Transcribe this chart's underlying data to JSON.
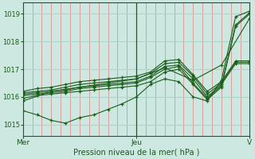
{
  "xlabel": "Pression niveau de la mer( hPa )",
  "bg_color": "#cce8e0",
  "plot_bg_color": "#cce8e0",
  "grid_h_color": "#b0d4cc",
  "grid_v_color": "#e08080",
  "line_color": "#1a5c1a",
  "text_color": "#1a5c1a",
  "axis_color": "#1a5c1a",
  "ylim": [
    1014.6,
    1019.4
  ],
  "yticks": [
    1015,
    1016,
    1017,
    1018,
    1019
  ],
  "xlim": [
    0,
    96
  ],
  "xtick_positions": [
    0,
    48,
    96
  ],
  "xtick_labels": [
    "Mer",
    "Jeu",
    "V"
  ],
  "n_vgrid": 25,
  "series": [
    {
      "x": [
        0,
        6,
        12,
        18,
        24,
        30,
        36,
        42,
        48,
        54,
        60,
        66,
        72,
        78,
        84,
        90,
        96
      ],
      "y": [
        1015.5,
        1015.35,
        1015.15,
        1015.05,
        1015.25,
        1015.35,
        1015.55,
        1015.75,
        1016.0,
        1016.45,
        1016.65,
        1016.55,
        1016.0,
        1015.85,
        1016.6,
        1018.9,
        1019.1
      ]
    },
    {
      "x": [
        0,
        6,
        12,
        18,
        24,
        30,
        36,
        42,
        48,
        54,
        60,
        66,
        72,
        78,
        84,
        90,
        96
      ],
      "y": [
        1015.95,
        1016.05,
        1016.1,
        1016.15,
        1016.2,
        1016.25,
        1016.3,
        1016.35,
        1016.4,
        1016.55,
        1016.9,
        1017.0,
        1016.45,
        1015.9,
        1016.35,
        1018.55,
        1019.0
      ]
    },
    {
      "x": [
        0,
        6,
        12,
        18,
        24,
        30,
        36,
        42,
        48,
        54,
        60,
        66,
        72,
        78,
        84,
        90,
        96
      ],
      "y": [
        1016.05,
        1016.1,
        1016.15,
        1016.2,
        1016.3,
        1016.35,
        1016.4,
        1016.45,
        1016.5,
        1016.7,
        1017.0,
        1017.1,
        1016.5,
        1015.95,
        1016.4,
        1018.6,
        1019.05
      ]
    },
    {
      "x": [
        0,
        6,
        12,
        18,
        24,
        30,
        36,
        42,
        48,
        54,
        60,
        66,
        72,
        78,
        84,
        90,
        96
      ],
      "y": [
        1016.1,
        1016.15,
        1016.2,
        1016.25,
        1016.35,
        1016.4,
        1016.45,
        1016.5,
        1016.55,
        1016.75,
        1017.1,
        1017.15,
        1016.65,
        1016.0,
        1016.45,
        1017.2,
        1017.2
      ]
    },
    {
      "x": [
        0,
        6,
        12,
        18,
        24,
        30,
        36,
        42,
        48,
        54,
        60,
        66,
        72,
        78,
        84,
        90,
        96
      ],
      "y": [
        1016.15,
        1016.2,
        1016.25,
        1016.35,
        1016.45,
        1016.5,
        1016.55,
        1016.6,
        1016.65,
        1016.85,
        1017.2,
        1017.25,
        1016.75,
        1016.1,
        1016.5,
        1017.25,
        1017.25
      ]
    },
    {
      "x": [
        0,
        6,
        12,
        18,
        24,
        30,
        36,
        42,
        48,
        54,
        60,
        66,
        72,
        78,
        84,
        90,
        96
      ],
      "y": [
        1016.2,
        1016.3,
        1016.35,
        1016.45,
        1016.55,
        1016.6,
        1016.65,
        1016.7,
        1016.75,
        1016.9,
        1017.3,
        1017.35,
        1016.8,
        1016.2,
        1016.55,
        1017.3,
        1017.3
      ]
    },
    {
      "x": [
        0,
        12,
        24,
        36,
        48,
        60,
        72,
        84,
        96
      ],
      "y": [
        1015.85,
        1016.2,
        1016.35,
        1016.5,
        1016.65,
        1017.05,
        1016.6,
        1017.15,
        1018.85
      ]
    }
  ]
}
